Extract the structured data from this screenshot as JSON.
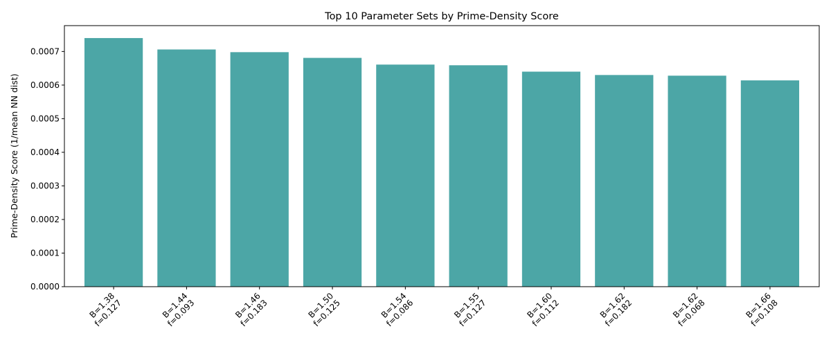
{
  "chart_data": {
    "type": "bar",
    "title": "Top 10 Parameter Sets by Prime-Density Score",
    "xlabel": "",
    "ylabel": "Prime-Density Score (1/mean NN dist)",
    "categories": [
      [
        "B=1.38",
        "f=0.127"
      ],
      [
        "B=1.44",
        "f=0.093"
      ],
      [
        "B=1.46",
        "f=0.183"
      ],
      [
        "B=1.50",
        "f=0.125"
      ],
      [
        "B=1.54",
        "f=0.086"
      ],
      [
        "B=1.55",
        "f=0.127"
      ],
      [
        "B=1.60",
        "f=0.112"
      ],
      [
        "B=1.62",
        "f=0.182"
      ],
      [
        "B=1.62",
        "f=0.068"
      ],
      [
        "B=1.66",
        "f=0.108"
      ]
    ],
    "values": [
      0.00074,
      0.000706,
      0.000698,
      0.000681,
      0.000661,
      0.000659,
      0.00064,
      0.00063,
      0.000628,
      0.000614
    ],
    "ylim": [
      0,
      0.000777
    ],
    "yticks": [
      "0.0000",
      "0.0001",
      "0.0002",
      "0.0003",
      "0.0004",
      "0.0005",
      "0.0006",
      "0.0007"
    ],
    "ytick_values": [
      0,
      0.0001,
      0.0002,
      0.0003,
      0.0004,
      0.0005,
      0.0006,
      0.0007
    ],
    "bar_color": "#4ca6a6",
    "grid": false,
    "legend": "none"
  }
}
